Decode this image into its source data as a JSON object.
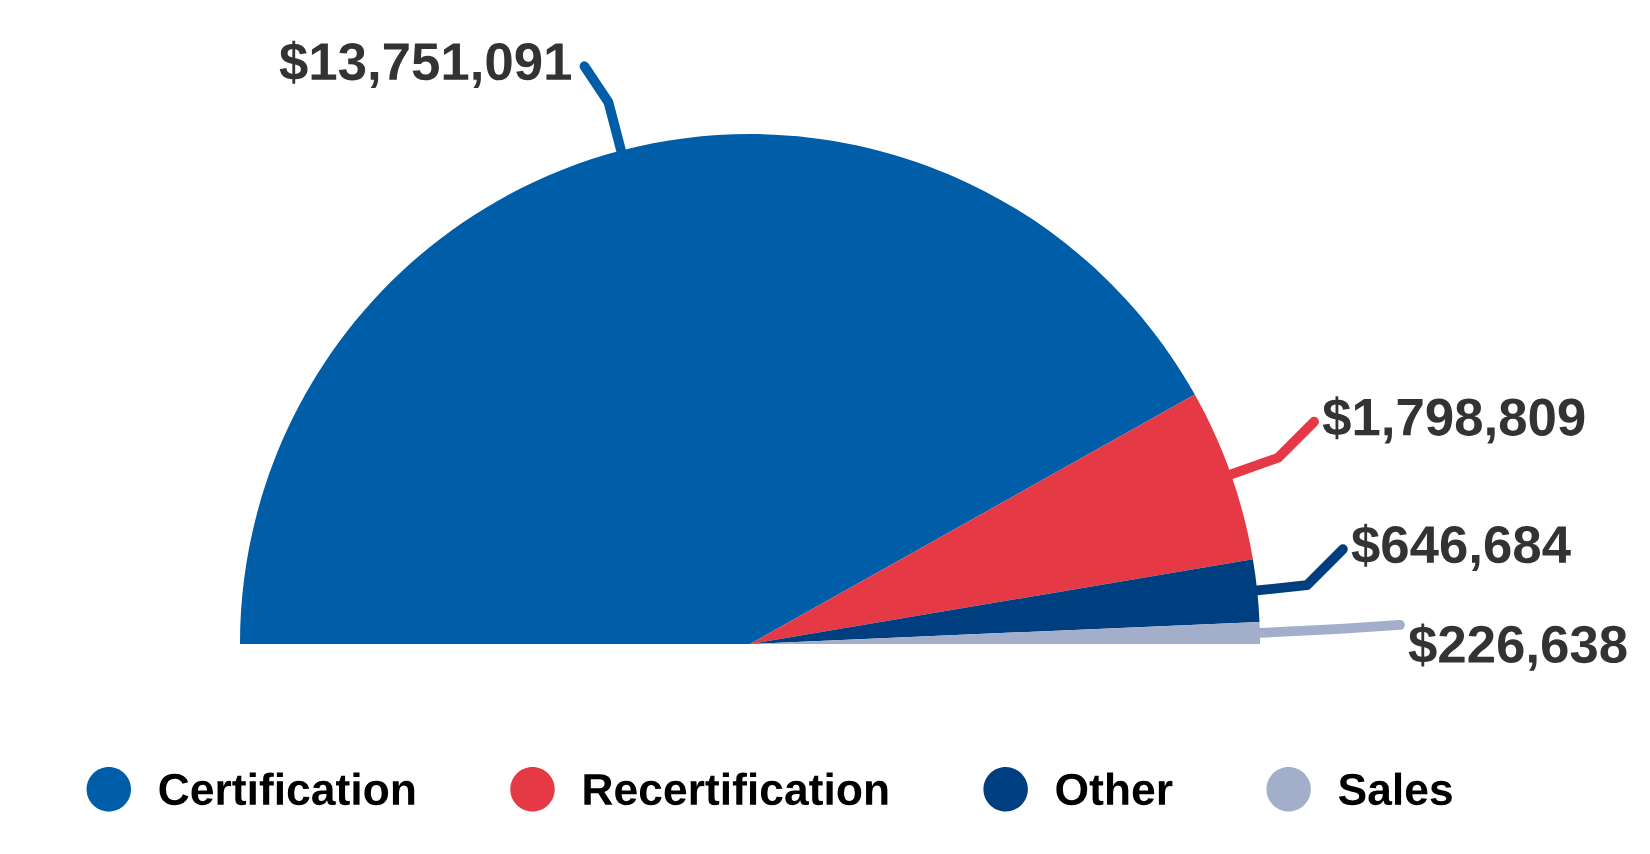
{
  "chart_data": {
    "type": "pie",
    "categories": [
      "Certification",
      "Recertification",
      "Other",
      "Sales"
    ],
    "values": [
      13751091,
      1798809,
      646684,
      226638
    ],
    "colors": [
      "#005ea8",
      "#e63946",
      "#003f7f",
      "#a3aecb"
    ],
    "value_labels": [
      "$13,751,091",
      "$1,798,809",
      "$646,684",
      "$226,638"
    ],
    "legend": "bottom"
  }
}
